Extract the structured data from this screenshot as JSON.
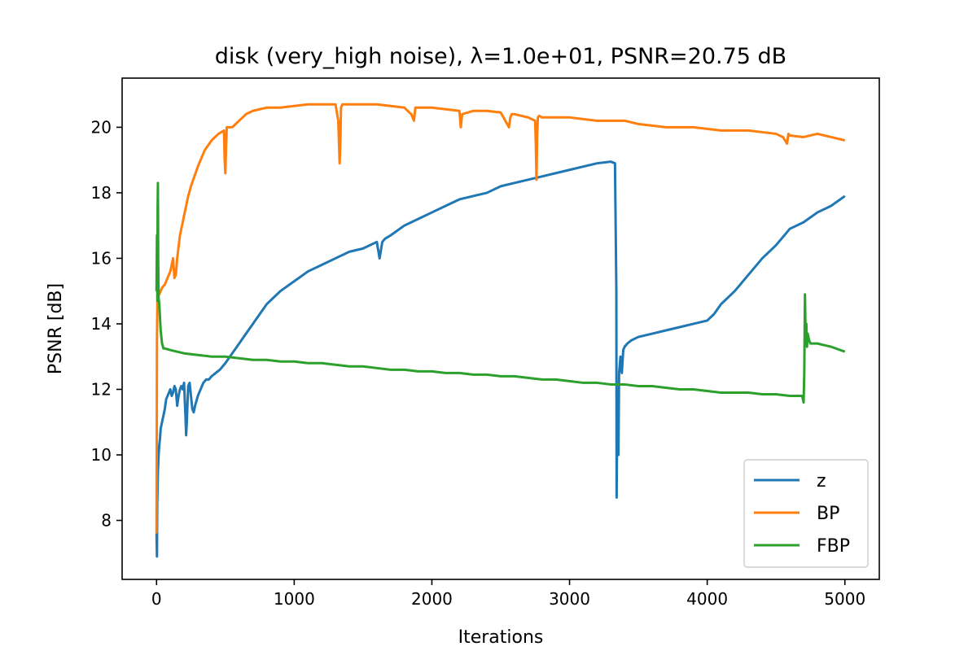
{
  "chart_data": {
    "type": "line",
    "title": "disk (very_high noise), λ=1.0e+01, PSNR=20.75 dB",
    "xlabel": "Iterations",
    "ylabel": "PSNR [dB]",
    "xlim": [
      -250,
      5250
    ],
    "ylim": [
      6.2,
      21.5
    ],
    "xticks": [
      0,
      1000,
      2000,
      3000,
      4000,
      5000
    ],
    "yticks": [
      8,
      10,
      12,
      14,
      16,
      18,
      20
    ],
    "grid": false,
    "legend": "lower right",
    "series": [
      {
        "name": "z",
        "color": "#1f77b4",
        "x": [
          0,
          3,
          5,
          10,
          15,
          20,
          25,
          30,
          40,
          50,
          60,
          70,
          80,
          90,
          100,
          110,
          120,
          130,
          140,
          150,
          160,
          170,
          180,
          190,
          200,
          210,
          215,
          220,
          225,
          230,
          240,
          250,
          260,
          270,
          280,
          300,
          320,
          340,
          360,
          380,
          400,
          430,
          460,
          500,
          550,
          600,
          650,
          700,
          750,
          800,
          850,
          900,
          1000,
          1100,
          1200,
          1300,
          1400,
          1500,
          1600,
          1620,
          1640,
          1660,
          1700,
          1800,
          1900,
          2000,
          2100,
          2200,
          2300,
          2400,
          2500,
          2600,
          2700,
          2800,
          2900,
          3000,
          3100,
          3200,
          3300,
          3330,
          3340,
          3342,
          3345,
          3350,
          3355,
          3360,
          3370,
          3380,
          3390,
          3400,
          3420,
          3450,
          3500,
          3600,
          3700,
          3800,
          3900,
          4000,
          4050,
          4100,
          4200,
          4300,
          4400,
          4500,
          4600,
          4700,
          4800,
          4900,
          5000
        ],
        "y": [
          7.6,
          6.9,
          8.5,
          9.5,
          10.0,
          10.3,
          10.5,
          10.8,
          11.0,
          11.2,
          11.4,
          11.7,
          11.8,
          11.9,
          12.0,
          11.8,
          11.9,
          12.1,
          12.0,
          11.5,
          11.8,
          12.0,
          12.1,
          12.0,
          12.2,
          11.2,
          10.6,
          11.0,
          11.6,
          12.1,
          12.2,
          11.8,
          11.4,
          11.3,
          11.5,
          11.8,
          12.0,
          12.2,
          12.3,
          12.3,
          12.4,
          12.5,
          12.6,
          12.8,
          13.1,
          13.4,
          13.7,
          14.0,
          14.3,
          14.6,
          14.8,
          15.0,
          15.3,
          15.6,
          15.8,
          16.0,
          16.2,
          16.3,
          16.5,
          16.0,
          16.5,
          16.6,
          16.7,
          17.0,
          17.2,
          17.4,
          17.6,
          17.8,
          17.9,
          18.0,
          18.2,
          18.3,
          18.4,
          18.5,
          18.6,
          18.7,
          18.8,
          18.9,
          18.95,
          18.9,
          15.0,
          8.7,
          10.5,
          12.0,
          10.0,
          12.5,
          13.0,
          12.5,
          13.2,
          13.3,
          13.4,
          13.5,
          13.6,
          13.7,
          13.8,
          13.9,
          14.0,
          14.1,
          14.3,
          14.6,
          15.0,
          15.5,
          16.0,
          16.4,
          16.9,
          17.1,
          17.4,
          17.6,
          17.9
        ]
      },
      {
        "name": "BP",
        "color": "#ff7f0e",
        "x": [
          0,
          3,
          6,
          10,
          15,
          20,
          30,
          40,
          60,
          80,
          100,
          120,
          130,
          140,
          150,
          170,
          200,
          230,
          250,
          300,
          350,
          400,
          450,
          490,
          495,
          500,
          505,
          510,
          550,
          600,
          650,
          700,
          800,
          900,
          1000,
          1100,
          1200,
          1300,
          1320,
          1330,
          1335,
          1340,
          1350,
          1400,
          1500,
          1600,
          1700,
          1800,
          1850,
          1870,
          1880,
          1900,
          2000,
          2100,
          2200,
          2210,
          2220,
          2300,
          2400,
          2500,
          2560,
          2570,
          2580,
          2600,
          2700,
          2750,
          2755,
          2760,
          2765,
          2770,
          2780,
          2800,
          2900,
          3000,
          3100,
          3200,
          3300,
          3400,
          3500,
          3600,
          3700,
          3800,
          3900,
          4000,
          4100,
          4200,
          4300,
          4400,
          4500,
          4550,
          4580,
          4590,
          4600,
          4700,
          4800,
          4900,
          5000
        ],
        "y": [
          7.6,
          13.5,
          14.7,
          14.8,
          14.9,
          14.9,
          15.0,
          15.1,
          15.2,
          15.4,
          15.6,
          16.0,
          15.4,
          15.5,
          16.0,
          16.7,
          17.3,
          17.9,
          18.2,
          18.8,
          19.3,
          19.6,
          19.8,
          19.9,
          19.0,
          18.6,
          19.4,
          20.0,
          20.0,
          20.2,
          20.4,
          20.5,
          20.6,
          20.6,
          20.65,
          20.7,
          20.7,
          20.7,
          20.2,
          18.9,
          19.5,
          20.6,
          20.7,
          20.7,
          20.7,
          20.7,
          20.65,
          20.6,
          20.4,
          20.2,
          20.6,
          20.6,
          20.6,
          20.55,
          20.5,
          20.0,
          20.4,
          20.5,
          20.5,
          20.45,
          20.0,
          20.3,
          20.4,
          20.4,
          20.3,
          20.2,
          19.5,
          18.4,
          19.8,
          20.3,
          20.35,
          20.3,
          20.3,
          20.3,
          20.25,
          20.2,
          20.2,
          20.2,
          20.1,
          20.05,
          20.0,
          20.0,
          20.0,
          19.95,
          19.9,
          19.9,
          19.9,
          19.85,
          19.8,
          19.7,
          19.5,
          19.8,
          19.75,
          19.7,
          19.8,
          19.7,
          19.6
        ]
      },
      {
        "name": "FBP",
        "color": "#2ca02c",
        "x": [
          0,
          3,
          6,
          8,
          10,
          12,
          15,
          20,
          25,
          30,
          40,
          50,
          60,
          100,
          200,
          300,
          400,
          500,
          600,
          700,
          800,
          900,
          1000,
          1100,
          1200,
          1300,
          1400,
          1500,
          1600,
          1700,
          1800,
          1900,
          2000,
          2100,
          2200,
          2300,
          2400,
          2500,
          2600,
          2700,
          2800,
          2900,
          3000,
          3100,
          3200,
          3300,
          3400,
          3500,
          3600,
          3700,
          3800,
          3900,
          4000,
          4100,
          4200,
          4300,
          4400,
          4500,
          4600,
          4650,
          4690,
          4700,
          4705,
          4710,
          4715,
          4720,
          4725,
          4730,
          4740,
          4750,
          4800,
          4900,
          5000
        ],
        "y": [
          15.0,
          16.7,
          14.7,
          17.5,
          18.3,
          16.0,
          14.8,
          14.6,
          14.2,
          13.8,
          13.4,
          13.25,
          13.25,
          13.2,
          13.1,
          13.05,
          13.0,
          13.0,
          12.95,
          12.9,
          12.9,
          12.85,
          12.85,
          12.8,
          12.8,
          12.75,
          12.7,
          12.7,
          12.65,
          12.6,
          12.6,
          12.55,
          12.55,
          12.5,
          12.5,
          12.45,
          12.45,
          12.4,
          12.4,
          12.35,
          12.3,
          12.3,
          12.25,
          12.2,
          12.2,
          12.15,
          12.15,
          12.1,
          12.1,
          12.05,
          12.0,
          12.0,
          11.95,
          11.9,
          11.9,
          11.9,
          11.85,
          11.85,
          11.8,
          11.8,
          11.8,
          11.6,
          12.5,
          14.9,
          13.6,
          14.0,
          13.3,
          13.7,
          13.5,
          13.4,
          13.4,
          13.3,
          13.15
        ]
      }
    ],
    "legend_labels": [
      "z",
      "BP",
      "FBP"
    ]
  }
}
